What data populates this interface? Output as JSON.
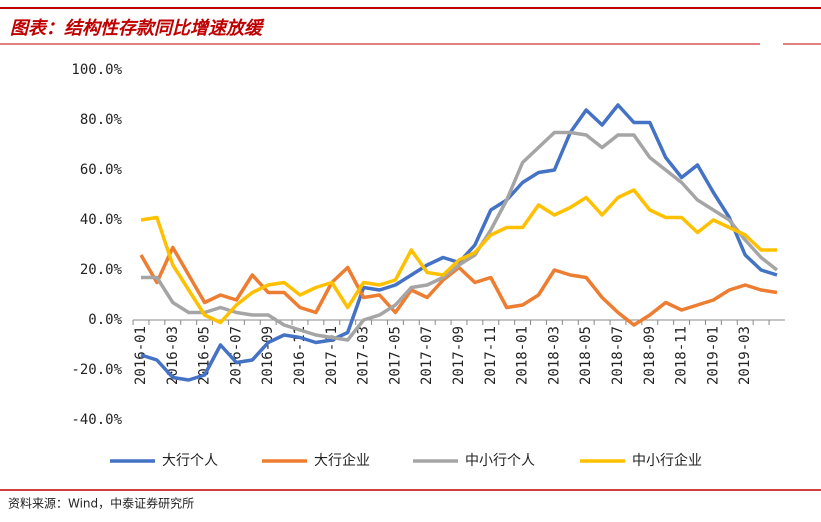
{
  "chart_data": {
    "type": "line",
    "title": "图表：结构性存款同比增速放缓",
    "source": "资料来源：Wind，中泰证券研究所",
    "categories": [
      "2016-01",
      null,
      "2016-03",
      null,
      "2016-05",
      null,
      "2016-07",
      null,
      "2016-09",
      null,
      "2016-11",
      null,
      "2017-01",
      null,
      "2017-03",
      null,
      "2017-05",
      null,
      "2017-07",
      null,
      "2017-09",
      null,
      "2017-11",
      null,
      "2018-01",
      null,
      "2018-03",
      null,
      "2018-05",
      null,
      "2018-07",
      null,
      "2018-09",
      null,
      "2018-11",
      null,
      "2019-01",
      null,
      "2019-03",
      null,
      null
    ],
    "series": [
      {
        "name": "大行个人",
        "color": "#4472c4",
        "values": [
          -14,
          -16,
          -23,
          -24,
          -22,
          -10,
          -17,
          -16,
          -9,
          -6,
          -7,
          -9,
          -8,
          -5,
          13,
          12,
          14,
          18,
          22,
          25,
          23,
          30,
          44,
          48,
          55,
          59,
          60,
          75,
          84,
          78,
          86,
          79,
          79,
          65,
          57,
          62,
          51,
          41,
          26,
          20,
          18
        ]
      },
      {
        "name": "大行企业",
        "color": "#ed7d31",
        "values": [
          26,
          15,
          29,
          18,
          7,
          10,
          8,
          18,
          11,
          11,
          5,
          3,
          15,
          21,
          9,
          10,
          3,
          12,
          9,
          16,
          21,
          15,
          17,
          5,
          6,
          10,
          20,
          18,
          17,
          9,
          3,
          -2,
          2,
          7,
          4,
          6,
          8,
          12,
          14,
          12,
          11
        ]
      },
      {
        "name": "中小行个人",
        "color": "#a5a5a5",
        "values": [
          17,
          17,
          7,
          3,
          3,
          5,
          3,
          2,
          2,
          -2,
          -4,
          -6,
          -7,
          -8,
          0,
          2,
          6,
          13,
          14,
          17,
          22,
          26,
          36,
          48,
          63,
          69,
          75,
          75,
          74,
          69,
          74,
          74,
          65,
          60,
          55,
          48,
          44,
          40,
          32,
          25,
          20
        ]
      },
      {
        "name": "中小行企业",
        "color": "#ffc000",
        "values": [
          40,
          41,
          22,
          12,
          2,
          -1,
          6,
          11,
          14,
          15,
          10,
          13,
          15,
          5,
          15,
          14,
          16,
          28,
          19,
          18,
          24,
          27,
          34,
          37,
          37,
          46,
          42,
          45,
          49,
          42,
          49,
          52,
          44,
          41,
          41,
          35,
          40,
          37,
          34,
          28,
          28
        ]
      }
    ],
    "ylim": [
      -40,
      100
    ],
    "yticks": [
      {
        "value": -40,
        "label": "-40.0%"
      },
      {
        "value": -20,
        "label": "-20.0%"
      },
      {
        "value": 0,
        "label": "0.0%"
      },
      {
        "value": 20,
        "label": "20.0%"
      },
      {
        "value": 40,
        "label": "40.0%"
      },
      {
        "value": 60,
        "label": "60.0%"
      },
      {
        "value": 80,
        "label": "80.0%"
      },
      {
        "value": 100,
        "label": "100.0%"
      }
    ],
    "grid": false,
    "legend": "bottom"
  }
}
